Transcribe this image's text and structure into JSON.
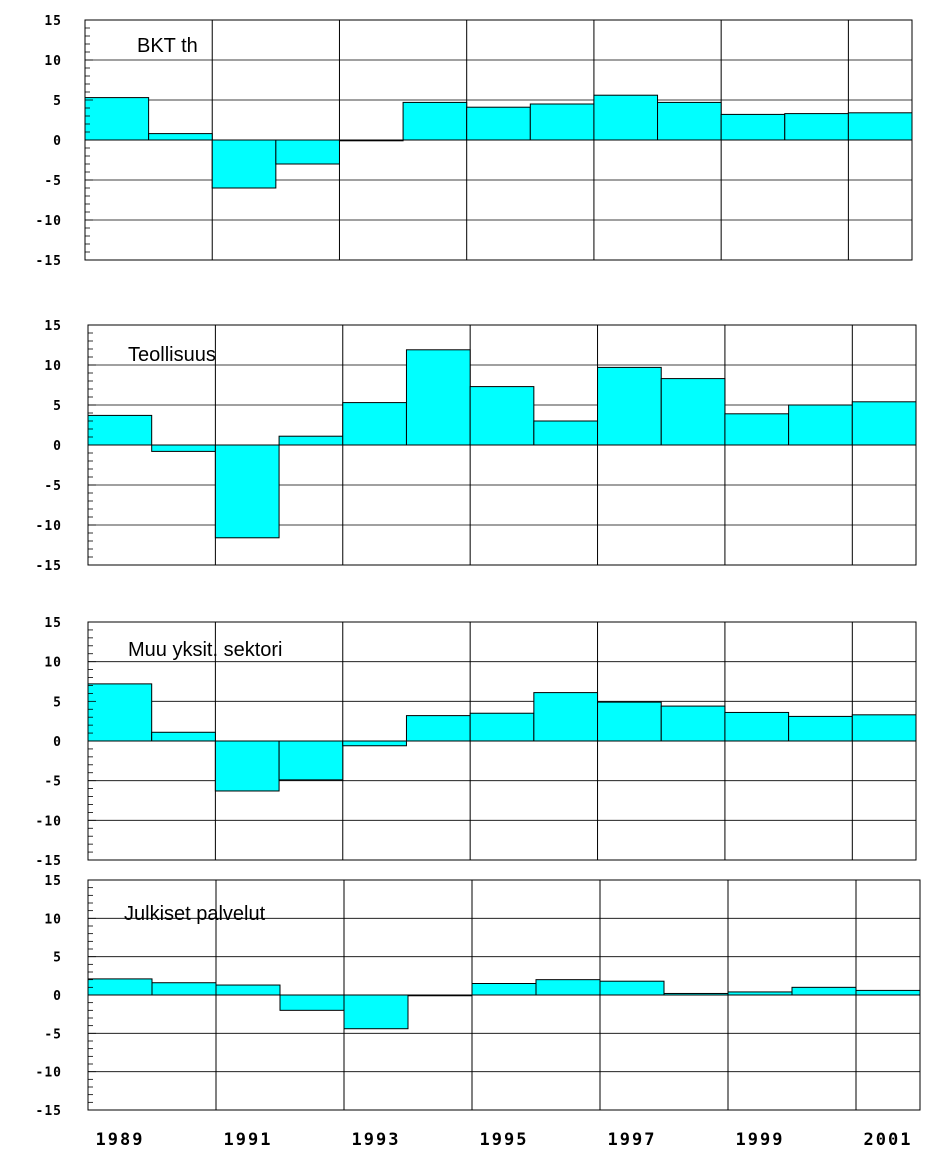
{
  "chart_data": [
    {
      "type": "bar",
      "title": "BKT th",
      "categories": [
        "1989",
        "1990",
        "1991",
        "1992",
        "1993",
        "1994",
        "1995",
        "1996",
        "1997",
        "1998",
        "1999",
        "2000",
        "2001"
      ],
      "values": [
        5.3,
        0.8,
        -6.0,
        -3.0,
        -0.1,
        4.7,
        4.1,
        4.5,
        5.6,
        4.7,
        3.2,
        3.3,
        3.4
      ],
      "ylim": [
        -15,
        15
      ],
      "yticks": [
        15,
        10,
        5,
        0,
        -5,
        -10,
        -15
      ],
      "grid": true,
      "color": "#00FFFF"
    },
    {
      "type": "bar",
      "title": "Teollisuus",
      "categories": [
        "1989",
        "1990",
        "1991",
        "1992",
        "1993",
        "1994",
        "1995",
        "1996",
        "1997",
        "1998",
        "1999",
        "2000",
        "2001"
      ],
      "values": [
        3.7,
        -0.8,
        -11.6,
        1.1,
        5.3,
        11.9,
        7.3,
        3.0,
        9.7,
        8.3,
        3.9,
        5.0,
        5.4
      ],
      "ylim": [
        -15,
        15
      ],
      "yticks": [
        15,
        10,
        5,
        0,
        -5,
        -10,
        -15
      ],
      "grid": true,
      "color": "#00FFFF"
    },
    {
      "type": "bar",
      "title": "Muu yksit. sektori",
      "categories": [
        "1989",
        "1990",
        "1991",
        "1992",
        "1993",
        "1994",
        "1995",
        "1996",
        "1997",
        "1998",
        "1999",
        "2000",
        "2001"
      ],
      "values": [
        7.2,
        1.1,
        -6.3,
        -4.9,
        -0.6,
        3.2,
        3.5,
        6.1,
        4.9,
        4.4,
        3.6,
        3.1,
        3.3
      ],
      "ylim": [
        -15,
        15
      ],
      "yticks": [
        15,
        10,
        5,
        0,
        -5,
        -10,
        -15
      ],
      "grid": true,
      "color": "#00FFFF"
    },
    {
      "type": "bar",
      "title": "Julkiset palvelut",
      "categories": [
        "1989",
        "1990",
        "1991",
        "1992",
        "1993",
        "1994",
        "1995",
        "1996",
        "1997",
        "1998",
        "1999",
        "2000",
        "2001"
      ],
      "values": [
        2.1,
        1.6,
        1.3,
        -2.0,
        -4.4,
        -0.1,
        1.5,
        2.0,
        1.8,
        0.2,
        0.4,
        1.0,
        0.6
      ],
      "ylim": [
        -15,
        15
      ],
      "yticks": [
        15,
        10,
        5,
        0,
        -5,
        -10,
        -15
      ],
      "grid": true,
      "color": "#00FFFF"
    }
  ],
  "x_axis_labels": [
    "1989",
    "1991",
    "1993",
    "1995",
    "1997",
    "1999",
    "2001"
  ]
}
